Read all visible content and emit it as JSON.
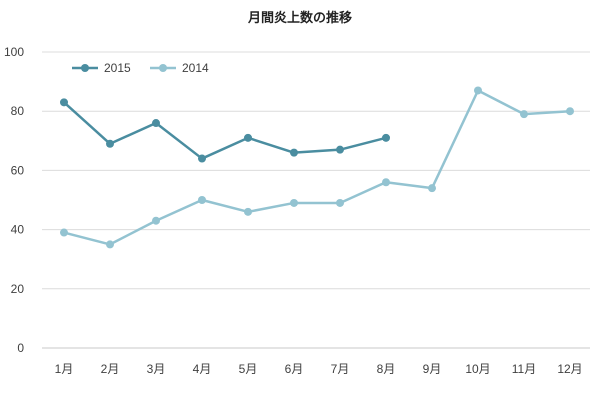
{
  "chart_data": {
    "type": "line",
    "title": "月間炎上数の推移",
    "xlabel": "",
    "ylabel": "",
    "categories": [
      "1月",
      "2月",
      "3月",
      "4月",
      "5月",
      "6月",
      "7月",
      "8月",
      "9月",
      "10月",
      "11月",
      "12月"
    ],
    "ylim": [
      0,
      100
    ],
    "yticks": [
      "0",
      "20",
      "40",
      "60",
      "80",
      "100"
    ],
    "grid": true,
    "legend_position": "top-left",
    "series": [
      {
        "name": "2015",
        "color": "#4A8DA0",
        "values": [
          83,
          69,
          76,
          64,
          71,
          66,
          67,
          71,
          null,
          null,
          null,
          null
        ]
      },
      {
        "name": "2014",
        "color": "#93C3D1",
        "values": [
          39,
          35,
          43,
          50,
          46,
          49,
          49,
          56,
          54,
          87,
          79,
          80
        ]
      }
    ]
  }
}
